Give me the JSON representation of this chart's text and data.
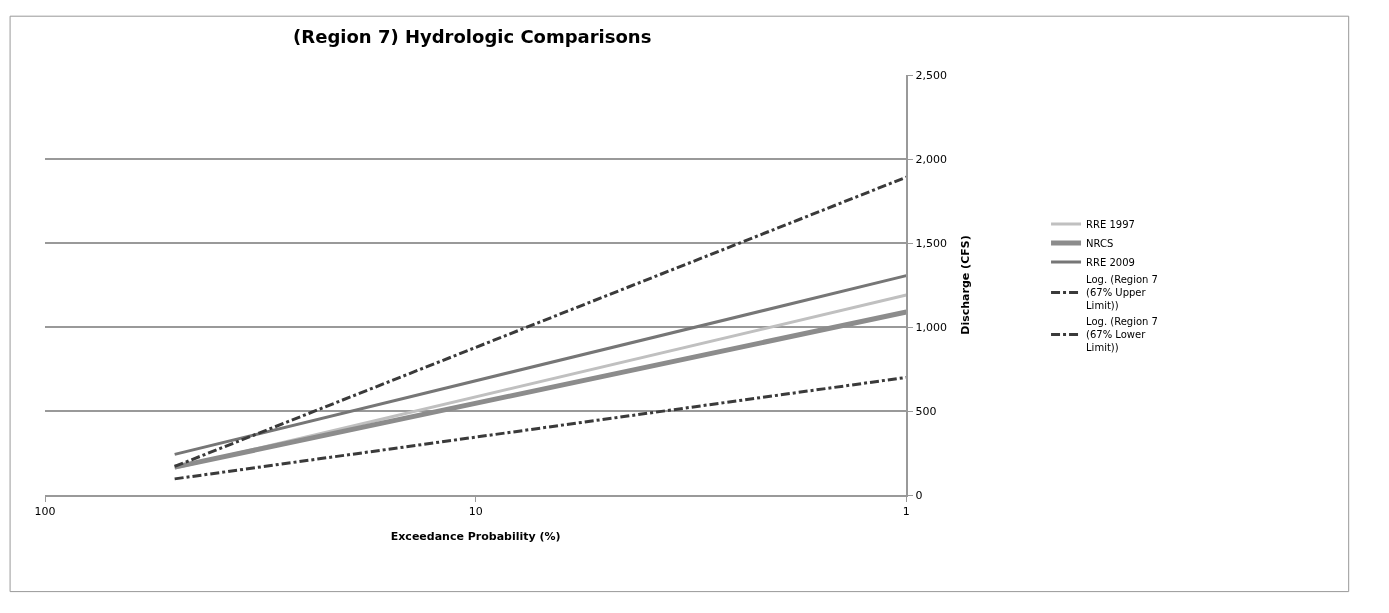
{
  "chart_data": {
    "type": "line",
    "title": "(Region 7) Hydrologic Comparisons",
    "xlabel": "Exceedance Probability (%)",
    "ylabel": "Discharge (CFS)",
    "log": "x",
    "xlim": [
      100,
      1
    ],
    "xticks": [
      100,
      10,
      1
    ],
    "ylim": [
      0,
      2500
    ],
    "yticks": [
      0,
      500,
      {
        "value": 1000,
        "label": "1,000"
      },
      {
        "value": 1500,
        "label": "1,500"
      },
      {
        "value": 2000,
        "label": "2,000"
      },
      {
        "value": 2500,
        "label": "2,500"
      }
    ],
    "grid": "y",
    "legend": "right",
    "marker": "none",
    "x": [
      50,
      1
    ],
    "series": [
      {
        "name": "RRE 1997",
        "color": "#c0c0c0",
        "values": [
          160,
          1190
        ],
        "line_style": "solid"
      },
      {
        "name": "NRCS",
        "color": "#8c8c8c",
        "values": [
          166,
          1089
        ],
        "line_style": "solid"
      },
      {
        "name": "RRE 2009",
        "color": "#767676",
        "values": [
          242,
          1306
        ],
        "line_style": "solid"
      },
      {
        "name": "Log. (Region 7 (67% Upper Limit))",
        "color": "#3a3a3a",
        "values": [
          170,
          1892
        ],
        "line_style": "dashdot"
      },
      {
        "name": "Log. (Region 7 (67% Lower Limit))",
        "color": "#3a3a3a",
        "values": [
          96,
          700
        ],
        "line_style": "dashdot"
      }
    ]
  }
}
